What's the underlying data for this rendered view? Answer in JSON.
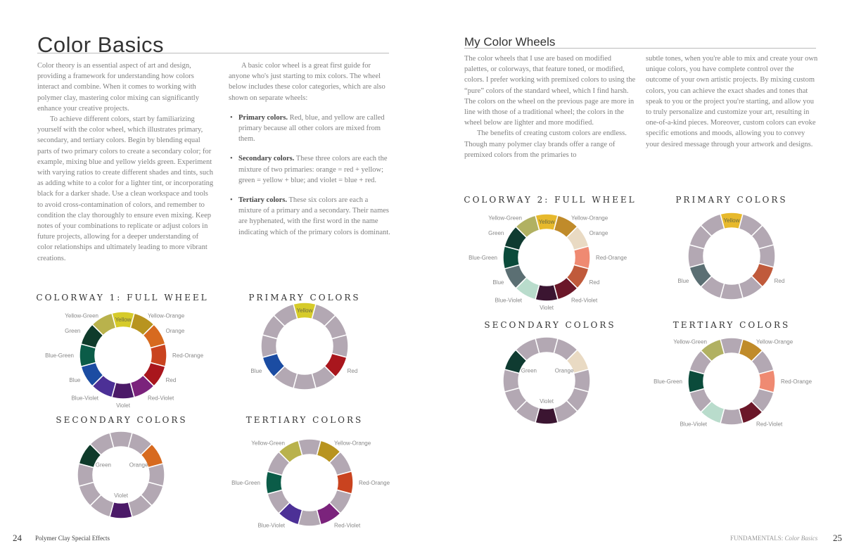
{
  "left_page": {
    "title": "Color Basics",
    "col1": {
      "p1": "Color theory is an essential aspect of art and design, providing a framework for understanding how colors interact and combine. When it comes to working with polymer clay, mastering color mixing can significantly enhance your creative projects.",
      "p2": "To achieve different colors, start by familiarizing yourself with the color wheel, which illustrates primary, secondary, and tertiary colors. Begin by blending equal parts of two primary colors to create a secondary color; for example, mixing blue and yellow yields green. Experiment with varying ratios to create different shades and tints, such as adding white to a color for a lighter tint, or incorporating black for a darker shade. Use a clean workspace and tools to avoid cross-contamination of colors, and remember to condition the clay thoroughly to ensure even mixing. Keep notes of your combinations to replicate or adjust colors in future projects, allowing for a deeper understanding of color relationships and ultimately leading to more vibrant creations."
    },
    "col2": {
      "intro": "A basic color wheel is a great first guide for anyone who's just starting to mix colors. The wheel below includes these color categories, which are also shown on separate wheels:",
      "bullets": [
        {
          "term": "Primary colors.",
          "text": " Red, blue, and yellow are called primary because all other colors are mixed from them."
        },
        {
          "term": "Secondary colors.",
          "text": " These three colors are each the mixture of two primaries: orange = red + yellow; green = yellow + blue; and violet = blue + red."
        },
        {
          "term": "Tertiary colors.",
          "text": " These six colors are each a mixture of a primary and a secondary. Their names are hyphenated, with the first word in the name indicating which of the primary colors is dominant."
        }
      ]
    },
    "footer": {
      "page_number": "24",
      "book_title": "Polymer Clay Special Effects"
    }
  },
  "right_page": {
    "title": "My Color Wheels",
    "col1": {
      "p1": "The color wheels that I use are based on modified palettes, or colorways, that feature toned, or modified, colors. I prefer working with premixed colors to using the “pure” colors of the standard wheel, which I find harsh. The colors on the wheel on the previous page are more in line with those of a traditional wheel; the colors in the wheel below are lighter and more modified.",
      "p2": "The benefits of creating custom colors are endless. Though many polymer clay brands offer a range of premixed colors from the primaries to"
    },
    "col2": {
      "p1": "subtle tones, when you're able to mix and create your own unique colors, you have complete control over the outcome of your own artistic projects. By mixing custom colors, you can achieve the exact shades and tones that speak to you or the project you're starting, and allow you to truly personalize and customize your art, resulting in one-of-a-kind pieces. Moreover, custom colors can evoke specific emotions and moods, allowing you to convey your desired message through your artwork and designs."
    },
    "footer": {
      "section": "FUNDAMENTALS:",
      "section_italic": "Color Basics",
      "page_number": "25"
    }
  },
  "segment_names": [
    "Yellow",
    "Yellow-Orange",
    "Orange",
    "Red-Orange",
    "Red",
    "Red-Violet",
    "Violet",
    "Blue-Violet",
    "Blue",
    "Blue-Green",
    "Green",
    "Yellow-Green"
  ],
  "inactive_color": "#b3a8b3",
  "colorways": {
    "colorway1": [
      "#d6cb2a",
      "#b8941f",
      "#d76a1f",
      "#c9431f",
      "#a9161d",
      "#7b237c",
      "#4b1a68",
      "#4c3096",
      "#1b4ca2",
      "#0b5c48",
      "#0f3b2b",
      "#b9b24c"
    ],
    "colorway2": [
      "#e7b92c",
      "#c08b2a",
      "#e9dac3",
      "#ef8a72",
      "#c05a3b",
      "#6b1729",
      "#3b1531",
      "#b9dccc",
      "#5b6f73",
      "#0b4b3b",
      "#0f3b31",
      "#b1b162"
    ]
  },
  "wheels": [
    {
      "id": "w1-full",
      "title": "COLORWAY 1: FULL WHEEL",
      "colorway": "colorway1",
      "show": [
        0,
        1,
        2,
        3,
        4,
        5,
        6,
        7,
        8,
        9,
        10,
        11
      ],
      "labels": "outer"
    },
    {
      "id": "w1-primary",
      "title": "PRIMARY COLORS",
      "colorway": "colorway1",
      "show": [
        0,
        4,
        8
      ],
      "labels": "outer"
    },
    {
      "id": "w1-secondary",
      "title": "SECONDARY COLORS",
      "colorway": "colorway1",
      "show": [
        2,
        6,
        10
      ],
      "labels": "inner"
    },
    {
      "id": "w1-tertiary",
      "title": "TERTIARY COLORS",
      "colorway": "colorway1",
      "show": [
        1,
        3,
        5,
        7,
        9,
        11
      ],
      "labels": "outer"
    },
    {
      "id": "w2-full",
      "title": "COLORWAY 2: FULL WHEEL",
      "colorway": "colorway2",
      "show": [
        0,
        1,
        2,
        3,
        4,
        5,
        6,
        7,
        8,
        9,
        10,
        11
      ],
      "labels": "outer"
    },
    {
      "id": "w2-primary",
      "title": "PRIMARY COLORS",
      "colorway": "colorway2",
      "show": [
        0,
        4,
        8
      ],
      "labels": "outer"
    },
    {
      "id": "w2-secondary",
      "title": "SECONDARY COLORS",
      "colorway": "colorway2",
      "show": [
        2,
        6,
        10
      ],
      "labels": "inner"
    },
    {
      "id": "w2-tertiary",
      "title": "TERTIARY COLORS",
      "colorway": "colorway2",
      "show": [
        1,
        3,
        5,
        7,
        9,
        11
      ],
      "labels": "outer"
    }
  ]
}
